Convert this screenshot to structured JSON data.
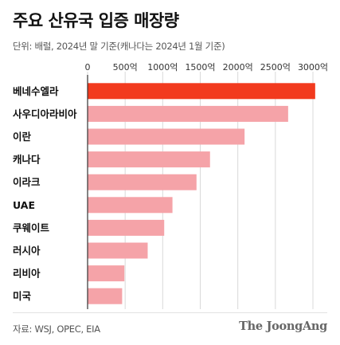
{
  "title": "주요 산유국 입증 매장량",
  "unit_note": "단위: 배럴, 2024년 말 기준(캐나다는 2024년 1월 기준)",
  "source": "자료: WSJ, OPEC, EIA",
  "brand": "The JoongAng",
  "colors": {
    "highlight": "#f23a1e",
    "bar": "#f5a3a8",
    "grid": "#d9d9d9",
    "axis": "#333333"
  },
  "chart_data": {
    "type": "bar",
    "orientation": "horizontal",
    "categories": [
      "베네수엘라",
      "사우디아라비아",
      "이란",
      "캐나다",
      "이라크",
      "UAE",
      "쿠웨이트",
      "러시아",
      "리비아",
      "미국"
    ],
    "values": [
      3030,
      2670,
      2090,
      1630,
      1450,
      1130,
      1020,
      800,
      490,
      460
    ],
    "highlight_index": 0,
    "xlim": [
      0,
      3000
    ],
    "ticks": [
      0,
      500,
      1000,
      1500,
      2000,
      2500,
      3000
    ],
    "tick_labels": [
      "0",
      "500억",
      "1000억",
      "1500억",
      "2000억",
      "2500억",
      "3000억"
    ],
    "title": "주요 산유국 입증 매장량",
    "xlabel": "",
    "ylabel": "",
    "grid": true
  }
}
